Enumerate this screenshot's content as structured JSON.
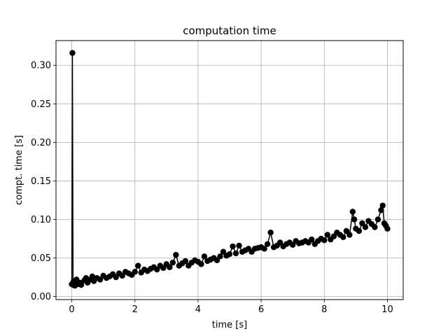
{
  "chart_data": {
    "type": "line",
    "title": "computation time",
    "xlabel": "time [s]",
    "ylabel": "compt. time [s]",
    "xlim": [
      -0.5,
      10.5
    ],
    "ylim": [
      -0.004,
      0.332
    ],
    "xticks": [
      0,
      2,
      4,
      6,
      8,
      10
    ],
    "xtick_labels": [
      "0",
      "2",
      "4",
      "6",
      "8",
      "10"
    ],
    "yticks": [
      0.0,
      0.05,
      0.1,
      0.15,
      0.2,
      0.25,
      0.3
    ],
    "ytick_labels": [
      "0.00",
      "0.05",
      "0.10",
      "0.15",
      "0.20",
      "0.25",
      "0.30"
    ],
    "grid": true,
    "marker": "o",
    "color": "#000000",
    "series": [
      {
        "x": [
          0.0,
          0.02,
          0.04,
          0.06,
          0.1,
          0.15,
          0.2,
          0.25,
          0.3,
          0.4,
          0.45,
          0.5,
          0.6,
          0.65,
          0.7,
          0.8,
          0.9,
          1.0,
          1.1,
          1.2,
          1.3,
          1.4,
          1.5,
          1.6,
          1.7,
          1.8,
          1.9,
          2.0,
          2.1,
          2.2,
          2.3,
          2.4,
          2.5,
          2.6,
          2.7,
          2.8,
          2.9,
          3.0,
          3.1,
          3.2,
          3.3,
          3.4,
          3.5,
          3.6,
          3.7,
          3.8,
          3.9,
          4.0,
          4.1,
          4.2,
          4.3,
          4.4,
          4.5,
          4.6,
          4.7,
          4.8,
          4.9,
          5.0,
          5.1,
          5.2,
          5.3,
          5.4,
          5.5,
          5.6,
          5.7,
          5.8,
          5.9,
          6.0,
          6.1,
          6.2,
          6.3,
          6.4,
          6.5,
          6.6,
          6.7,
          6.8,
          6.9,
          7.0,
          7.1,
          7.2,
          7.3,
          7.4,
          7.5,
          7.6,
          7.7,
          7.8,
          7.9,
          8.0,
          8.1,
          8.2,
          8.3,
          8.4,
          8.5,
          8.6,
          8.7,
          8.8,
          8.9,
          8.95,
          9.0,
          9.1,
          9.2,
          9.3,
          9.4,
          9.5,
          9.6,
          9.7,
          9.8,
          9.85,
          9.9,
          9.95,
          10.0
        ],
        "y": [
          0.016,
          0.316,
          0.015,
          0.02,
          0.014,
          0.022,
          0.016,
          0.018,
          0.015,
          0.021,
          0.024,
          0.018,
          0.022,
          0.026,
          0.02,
          0.024,
          0.022,
          0.027,
          0.024,
          0.026,
          0.029,
          0.025,
          0.03,
          0.027,
          0.032,
          0.03,
          0.028,
          0.032,
          0.04,
          0.031,
          0.035,
          0.033,
          0.036,
          0.038,
          0.035,
          0.04,
          0.037,
          0.042,
          0.038,
          0.044,
          0.054,
          0.04,
          0.043,
          0.046,
          0.04,
          0.044,
          0.047,
          0.045,
          0.042,
          0.052,
          0.046,
          0.048,
          0.05,
          0.047,
          0.052,
          0.058,
          0.053,
          0.055,
          0.065,
          0.056,
          0.066,
          0.058,
          0.06,
          0.062,
          0.058,
          0.062,
          0.063,
          0.064,
          0.062,
          0.068,
          0.083,
          0.064,
          0.066,
          0.07,
          0.065,
          0.068,
          0.07,
          0.067,
          0.072,
          0.069,
          0.07,
          0.072,
          0.07,
          0.074,
          0.068,
          0.072,
          0.075,
          0.073,
          0.08,
          0.074,
          0.078,
          0.083,
          0.08,
          0.077,
          0.085,
          0.08,
          0.11,
          0.1,
          0.088,
          0.085,
          0.095,
          0.09,
          0.098,
          0.094,
          0.09,
          0.1,
          0.112,
          0.118,
          0.095,
          0.092,
          0.088
        ]
      }
    ]
  }
}
